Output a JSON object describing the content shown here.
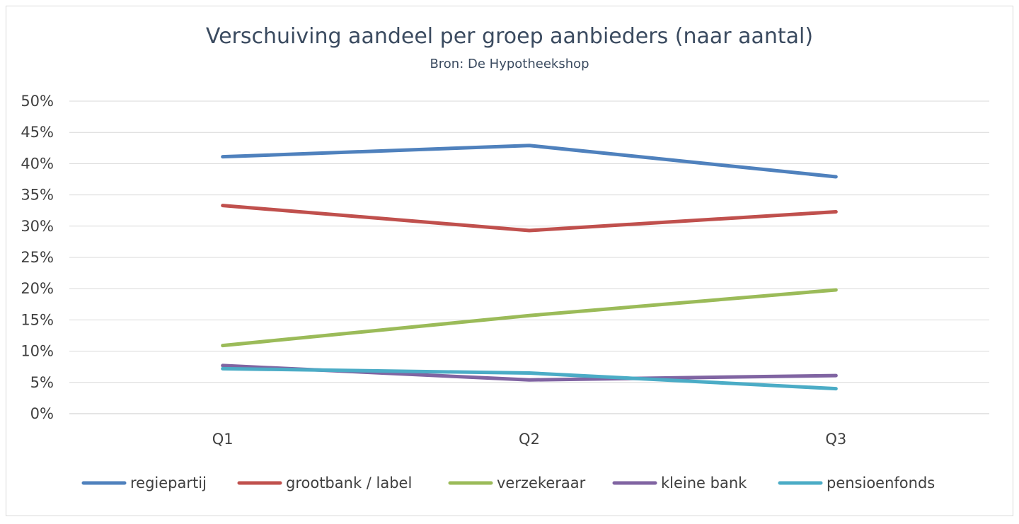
{
  "chart_data": {
    "type": "line",
    "title": "Verschuiving aandeel per groep aanbieders (naar aantal)",
    "subtitle": "Bron: De Hypotheekshop",
    "categories": [
      "Q1",
      "Q2",
      "Q3"
    ],
    "ylim": [
      0,
      50
    ],
    "yticks": [
      "0%",
      "5%",
      "10%",
      "15%",
      "20%",
      "25%",
      "30%",
      "35%",
      "40%",
      "45%",
      "50%"
    ],
    "ylabel": "",
    "xlabel": "",
    "grid": true,
    "legend_position": "bottom",
    "series": [
      {
        "name": "regiepartij",
        "color": "#4f81bd",
        "values": [
          41.1,
          42.9,
          37.9
        ]
      },
      {
        "name": "grootbank / label",
        "color": "#c0504d",
        "values": [
          33.3,
          29.3,
          32.3
        ]
      },
      {
        "name": "verzekeraar",
        "color": "#9bbb59",
        "values": [
          10.9,
          15.7,
          19.8
        ]
      },
      {
        "name": "kleine bank",
        "color": "#8064a2",
        "values": [
          7.7,
          5.4,
          6.1
        ]
      },
      {
        "name": "pensioenfonds",
        "color": "#4bacc6",
        "values": [
          7.2,
          6.5,
          4.0
        ]
      }
    ]
  }
}
